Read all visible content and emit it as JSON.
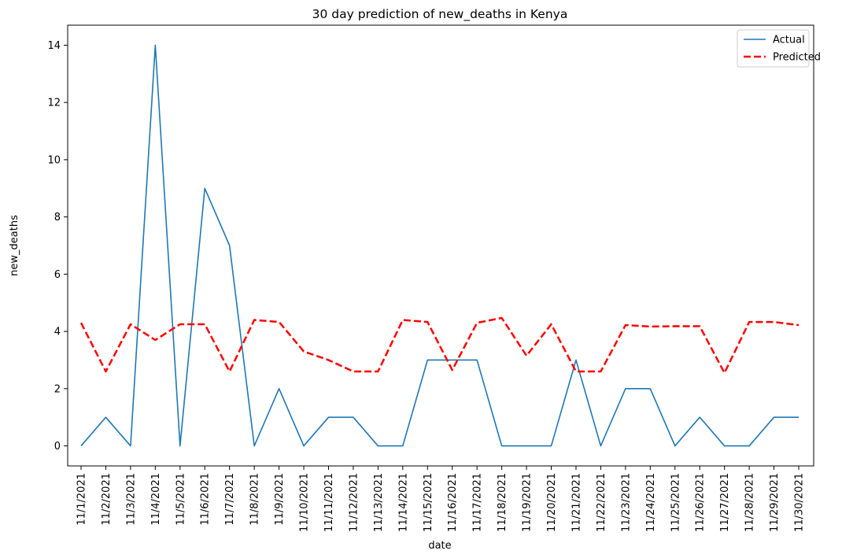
{
  "chart_data": {
    "type": "line",
    "title": "30 day prediction of new_deaths in Kenya",
    "xlabel": "date",
    "ylabel": "new_deaths",
    "x": [
      "11/1/2021",
      "11/2/2021",
      "11/3/2021",
      "11/4/2021",
      "11/5/2021",
      "11/6/2021",
      "11/7/2021",
      "11/8/2021",
      "11/9/2021",
      "11/10/2021",
      "11/11/2021",
      "11/12/2021",
      "11/13/2021",
      "11/14/2021",
      "11/15/2021",
      "11/16/2021",
      "11/17/2021",
      "11/18/2021",
      "11/19/2021",
      "11/20/2021",
      "11/21/2021",
      "11/22/2021",
      "11/23/2021",
      "11/24/2021",
      "11/25/2021",
      "11/26/2021",
      "11/27/2021",
      "11/28/2021",
      "11/29/2021",
      "11/30/2021"
    ],
    "yticks": [
      "0",
      "2",
      "4",
      "6",
      "8",
      "10",
      "12",
      "14"
    ],
    "ylim": [
      -0.7,
      14.7
    ],
    "grid": false,
    "legend_position": "top-right",
    "series": [
      {
        "name": "Actual",
        "color": "#1f77b4",
        "style": "solid",
        "values": [
          0,
          1,
          0,
          14,
          0,
          9,
          7,
          0,
          2,
          0,
          1,
          1,
          0,
          0,
          3,
          3,
          3,
          0,
          0,
          0,
          3,
          0,
          2,
          2,
          0,
          1,
          0,
          0,
          1,
          1
        ]
      },
      {
        "name": "Predicted",
        "color": "#ff0000",
        "style": "dashed",
        "values": [
          4.3,
          2.6,
          4.25,
          3.7,
          4.25,
          4.25,
          2.6,
          4.4,
          4.33,
          3.3,
          3.0,
          2.6,
          2.6,
          4.4,
          4.33,
          2.65,
          4.3,
          4.47,
          3.15,
          4.25,
          2.6,
          2.6,
          4.22,
          4.17,
          4.18,
          4.18,
          2.55,
          4.33,
          4.33,
          4.22
        ]
      }
    ]
  }
}
